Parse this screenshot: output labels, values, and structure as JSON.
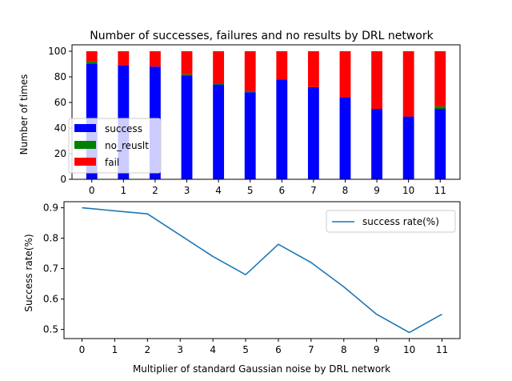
{
  "chart_data": [
    {
      "type": "bar",
      "stacked": true,
      "title": "Number of successes, failures and no results by DRL network",
      "xlabel": "",
      "ylabel": "Number of times",
      "categories": [
        "0",
        "1",
        "2",
        "3",
        "4",
        "5",
        "6",
        "7",
        "8",
        "9",
        "10",
        "11"
      ],
      "ylim": [
        0,
        105
      ],
      "yticks": [
        0,
        20,
        40,
        60,
        80,
        100
      ],
      "legend_position": "lower-left",
      "series": [
        {
          "name": "success",
          "color": "#0000ff",
          "values": [
            90,
            89,
            88,
            81,
            74,
            68,
            78,
            72,
            64,
            55,
            49,
            55
          ]
        },
        {
          "name": "no_reuslt",
          "color": "#008000",
          "values": [
            2,
            0,
            0,
            1,
            1,
            1,
            0,
            0,
            0,
            0,
            0,
            2
          ]
        },
        {
          "name": "fail",
          "color": "#ff0000",
          "values": [
            8,
            11,
            12,
            18,
            25,
            31,
            22,
            28,
            36,
            45,
            51,
            43
          ]
        }
      ]
    },
    {
      "type": "line",
      "title": "",
      "xlabel": "Multiplier of standard Gaussian noise by DRL network",
      "ylabel": "Success rate(%)",
      "x": [
        0,
        1,
        2,
        3,
        4,
        5,
        6,
        7,
        8,
        9,
        10,
        11
      ],
      "xticks": [
        "0",
        "1",
        "2",
        "3",
        "4",
        "5",
        "6",
        "7",
        "8",
        "9",
        "10",
        "11"
      ],
      "ylim": [
        0.47,
        0.92
      ],
      "yticks": [
        "0.5",
        "0.6",
        "0.7",
        "0.8",
        "0.9"
      ],
      "legend_position": "top-right",
      "series": [
        {
          "name": "success rate(%)",
          "color": "#1f77b4",
          "values": [
            0.9,
            0.89,
            0.88,
            0.81,
            0.74,
            0.68,
            0.78,
            0.72,
            0.64,
            0.55,
            0.49,
            0.55
          ]
        }
      ]
    }
  ]
}
